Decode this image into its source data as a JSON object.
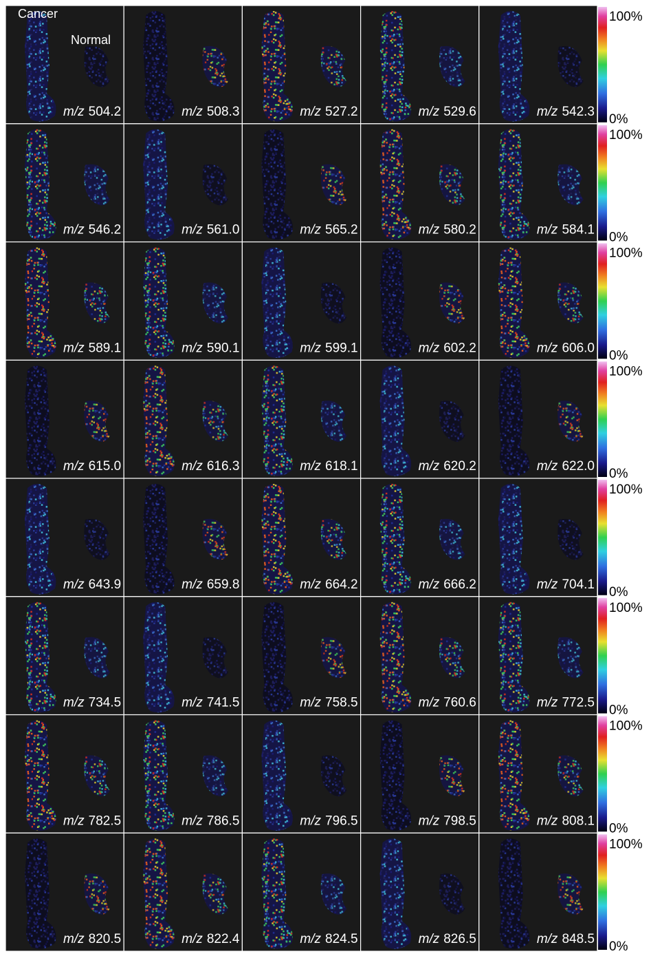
{
  "figure": {
    "sample_labels": {
      "cancer": "Cancer",
      "normal": "Normal"
    },
    "mz_prefix": "m/z",
    "colorbar": {
      "max_label": "100%",
      "min_label": "0%"
    },
    "rows": [
      [
        "504.2",
        "508.3",
        "527.2",
        "529.6",
        "542.3"
      ],
      [
        "546.2",
        "561.0",
        "565.2",
        "580.2",
        "584.1"
      ],
      [
        "589.1",
        "590.1",
        "599.1",
        "602.2",
        "606.0"
      ],
      [
        "615.0",
        "616.3",
        "618.1",
        "620.2",
        "622.0"
      ],
      [
        "643.9",
        "659.8",
        "664.2",
        "666.2",
        "704.1"
      ],
      [
        "734.5",
        "741.5",
        "758.5",
        "760.6",
        "772.5"
      ],
      [
        "782.5",
        "786.5",
        "796.5",
        "798.5",
        "808.1"
      ],
      [
        "820.5",
        "822.4",
        "824.5",
        "826.5",
        "848.5"
      ]
    ]
  }
}
